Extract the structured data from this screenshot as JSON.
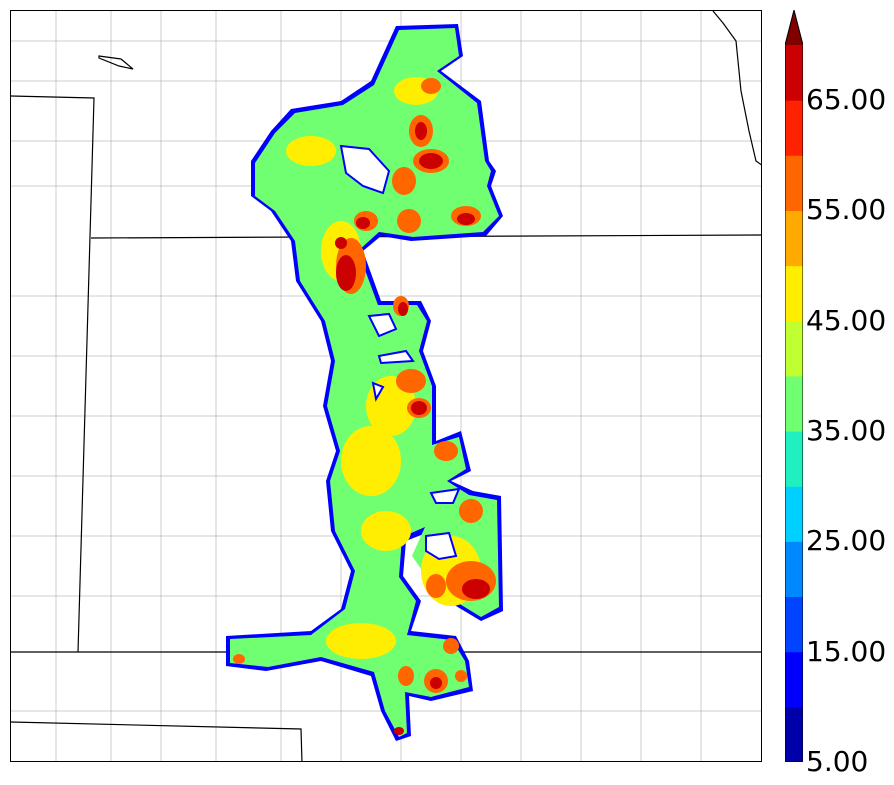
{
  "map": {
    "colorbar": {
      "levels": [
        5,
        10,
        15,
        20,
        25,
        30,
        35,
        40,
        45,
        50,
        55,
        60,
        65,
        70
      ],
      "colors": [
        "#0000aa",
        "#0000ff",
        "#0044ff",
        "#0088ff",
        "#00d0ff",
        "#20f0c0",
        "#70ff70",
        "#c0ff30",
        "#ffee00",
        "#ffaa00",
        "#ff6600",
        "#ff2200",
        "#cc0000",
        "#800000"
      ],
      "extend": "max",
      "tick_labels": [
        "5.00",
        "15.00",
        "25.00",
        "35.00",
        "45.00",
        "55.00",
        "65.00"
      ]
    },
    "field_colors": {
      "low": "#70ff70",
      "mid": "#ffee00",
      "high": "#ff6600",
      "peak": "#cc0000"
    }
  }
}
